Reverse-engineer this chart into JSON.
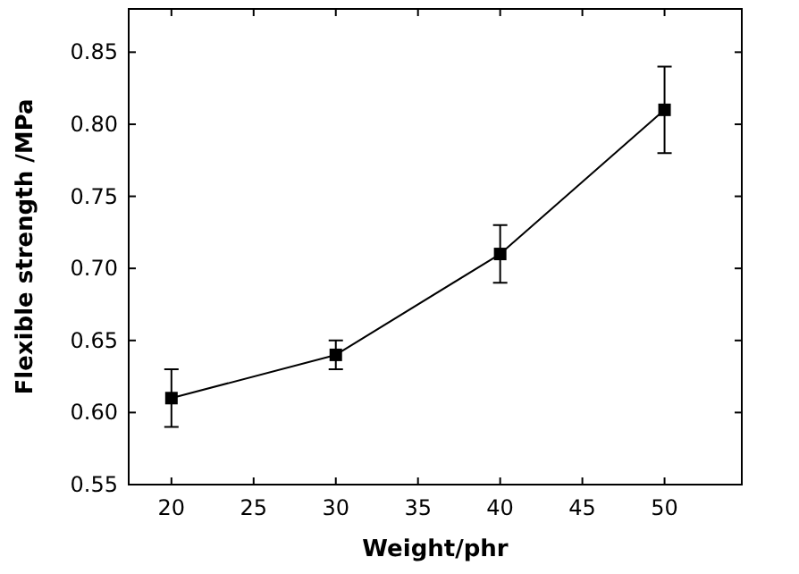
{
  "chart_data": {
    "type": "line",
    "xlabel": "Weight/phr",
    "ylabel": "Flexible strength /MPa",
    "x": [
      20,
      30,
      40,
      50
    ],
    "series": [
      {
        "color": "#000000",
        "values": [
          0.61,
          0.64,
          0.71,
          0.81
        ],
        "errors": [
          0.02,
          0.01,
          0.02,
          0.03
        ]
      }
    ],
    "xlim": [
      17.4,
      54.7
    ],
    "xticks": [
      20,
      25,
      30,
      35,
      40,
      45,
      50
    ],
    "ylim": [
      0.55,
      0.88
    ],
    "yticks": [
      0.55,
      {
        "value": 0.6,
        "label": "0.60"
      },
      0.65,
      {
        "value": 0.7,
        "label": "0.70"
      },
      0.75,
      {
        "value": 0.8,
        "label": "0.80"
      },
      0.85
    ],
    "marker": "square",
    "line_style": "solid",
    "grid": false
  }
}
